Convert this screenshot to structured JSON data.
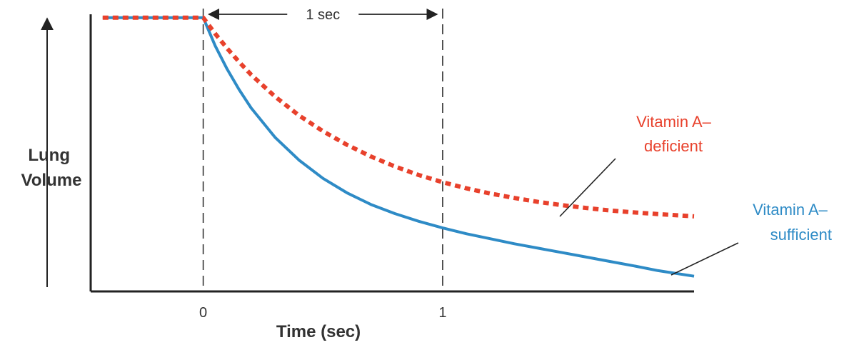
{
  "chart_data": {
    "type": "line",
    "title": "",
    "xlabel": "Time (sec)",
    "ylabel_lines": [
      "Lung",
      "Volume"
    ],
    "xlim": [
      -0.47,
      2.05
    ],
    "ylim": [
      0,
      1
    ],
    "x_ticks": [
      {
        "value": 0,
        "label": "0"
      },
      {
        "value": 1,
        "label": "1"
      }
    ],
    "vlines": [
      0,
      1
    ],
    "interval_annotation": {
      "from": 0,
      "to": 1,
      "label": "1 sec"
    },
    "grid": false,
    "series": [
      {
        "name": "Vitamin A–deficient",
        "label_lines": [
          "Vitamin A–",
          "deficient"
        ],
        "color": "#e8412c",
        "style": "dashed",
        "x": [
          -0.42,
          -0.3,
          -0.2,
          -0.1,
          0,
          0.05,
          0.1,
          0.15,
          0.2,
          0.3,
          0.4,
          0.5,
          0.6,
          0.7,
          0.8,
          0.9,
          1.0,
          1.1,
          1.2,
          1.3,
          1.4,
          1.5,
          1.6,
          1.7,
          1.8,
          1.9,
          2.05
        ],
        "y": [
          0.988,
          0.988,
          0.988,
          0.988,
          0.988,
          0.93,
          0.877,
          0.828,
          0.782,
          0.703,
          0.635,
          0.578,
          0.529,
          0.487,
          0.451,
          0.42,
          0.394,
          0.372,
          0.353,
          0.337,
          0.323,
          0.311,
          0.301,
          0.292,
          0.285,
          0.279,
          0.271
        ]
      },
      {
        "name": "Vitamin A–sufficient",
        "label_lines": [
          "Vitamin A–",
          "sufficient"
        ],
        "color": "#2e8bc6",
        "style": "solid",
        "x": [
          -0.42,
          -0.3,
          -0.2,
          -0.1,
          0,
          0.05,
          0.1,
          0.15,
          0.2,
          0.3,
          0.4,
          0.5,
          0.6,
          0.7,
          0.8,
          0.9,
          1.0,
          1.1,
          1.2,
          1.3,
          1.4,
          1.5,
          1.6,
          1.7,
          1.8,
          1.9,
          2.05
        ],
        "y": [
          0.988,
          0.988,
          0.988,
          0.988,
          0.988,
          0.886,
          0.802,
          0.728,
          0.662,
          0.556,
          0.474,
          0.408,
          0.356,
          0.314,
          0.281,
          0.253,
          0.229,
          0.208,
          0.19,
          0.172,
          0.156,
          0.14,
          0.124,
          0.108,
          0.092,
          0.075,
          0.055
        ]
      }
    ]
  }
}
